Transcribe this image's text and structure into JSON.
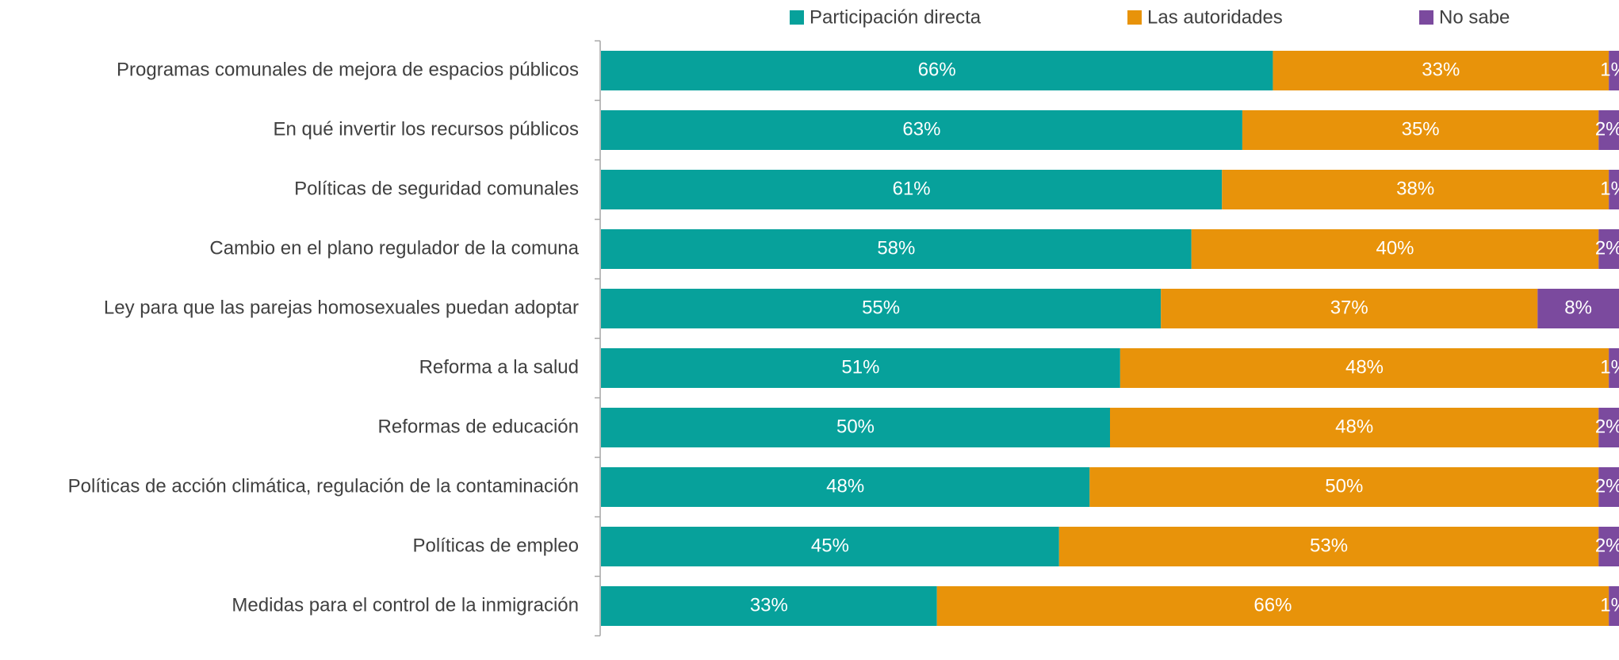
{
  "chart_data": {
    "type": "bar",
    "orientation": "horizontal",
    "stacked": true,
    "categories": [
      "Programas comunales de mejora de espacios públicos",
      "En qué invertir los recursos públicos",
      "Políticas de seguridad comunales",
      "Cambio en el plano regulador de la comuna",
      "Ley para que las parejas homosexuales puedan adoptar",
      "Reforma a la salud",
      "Reformas de educación",
      "Políticas de acción climática, regulación de la contaminación",
      "Políticas de empleo",
      "Medidas para el control de la inmigración"
    ],
    "series": [
      {
        "name": "Participación directa",
        "color": "#07a19b",
        "values": [
          66,
          63,
          61,
          58,
          55,
          51,
          50,
          48,
          45,
          33
        ],
        "value_labels": [
          "66%",
          "63%",
          "61%",
          "58%",
          "55%",
          "51%",
          "50%",
          "48%",
          "45%",
          "33%"
        ]
      },
      {
        "name": "Las autoridades",
        "color": "#e8930a",
        "values": [
          33,
          35,
          38,
          40,
          37,
          48,
          48,
          50,
          53,
          66
        ],
        "value_labels": [
          "33%",
          "35%",
          "38%",
          "40%",
          "37%",
          "48%",
          "48%",
          "50%",
          "53%",
          "66%"
        ]
      },
      {
        "name": "No sabe",
        "color": "#7b4a9e",
        "values": [
          1,
          2,
          1,
          2,
          8,
          1,
          2,
          2,
          2,
          1
        ],
        "value_labels": [
          "1%",
          "2%",
          "1%",
          "2%",
          "8%",
          "1%",
          "2%",
          "2%",
          "2%",
          "1%"
        ]
      }
    ],
    "xlim": [
      0,
      100
    ],
    "legend": "top"
  }
}
